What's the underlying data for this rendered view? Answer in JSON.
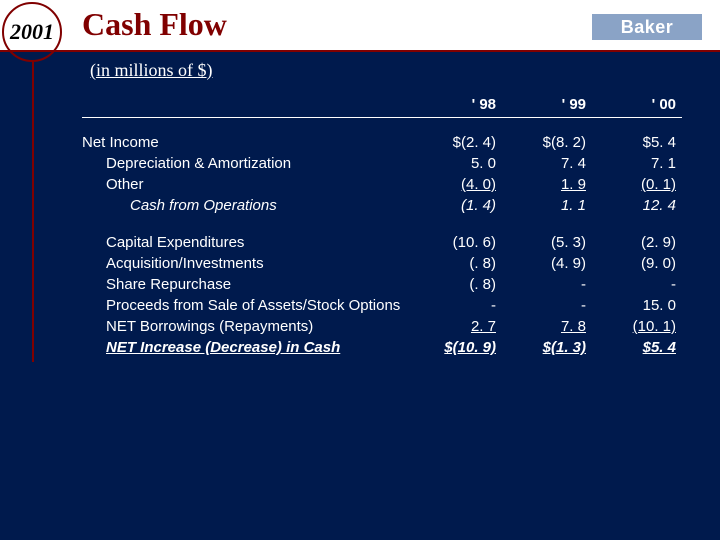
{
  "header": {
    "year": "2001",
    "title": "Cash Flow",
    "logo": "Baker",
    "subtitle": "(in millions of $)"
  },
  "columns": {
    "c1": "' 98",
    "c2": "' 99",
    "c3": "' 00"
  },
  "section1": {
    "r0": {
      "label": "Net Income",
      "v1": "$(2. 4)",
      "v2": "$(8. 2)",
      "v3": "$5. 4"
    },
    "r1": {
      "label": "Depreciation & Amortization",
      "v1": "5. 0",
      "v2": "7. 4",
      "v3": "7. 1"
    },
    "r2": {
      "label": "Other",
      "v1": "(4. 0)",
      "v2": "1. 9",
      "v3": "(0. 1)"
    },
    "r3": {
      "label": "Cash from Operations",
      "v1": "(1. 4)",
      "v2": "1. 1",
      "v3": "12. 4"
    }
  },
  "section2": {
    "r0": {
      "label": "Capital Expenditures",
      "v1": "(10. 6)",
      "v2": "(5. 3)",
      "v3": "(2. 9)"
    },
    "r1": {
      "label": "Acquisition/Investments",
      "v1": "(. 8)",
      "v2": "(4. 9)",
      "v3": "(9. 0)"
    },
    "r2": {
      "label": "Share Repurchase",
      "v1": "(. 8)",
      "v2": "-",
      "v3": "-"
    },
    "r3": {
      "label": "Proceeds from Sale of Assets/Stock Options",
      "v1": "-",
      "v2": "-",
      "v3": "15. 0"
    },
    "r4": {
      "label": "NET Borrowings (Repayments)",
      "v1": "2. 7",
      "v2": "7. 8",
      "v3": "(10. 1)"
    },
    "r5": {
      "label": "NET Increase (Decrease) in Cash",
      "v1": "$(10. 9)",
      "v2": "$(1. 3)",
      "v3": "$5. 4"
    }
  },
  "style": {
    "bg": "#001a4d",
    "accent": "#800000",
    "header_bg": "#ffffff",
    "logo_bg": "#8aa3c6",
    "text": "#ffffff",
    "title_fontsize": 32,
    "body_fontsize": 15
  }
}
